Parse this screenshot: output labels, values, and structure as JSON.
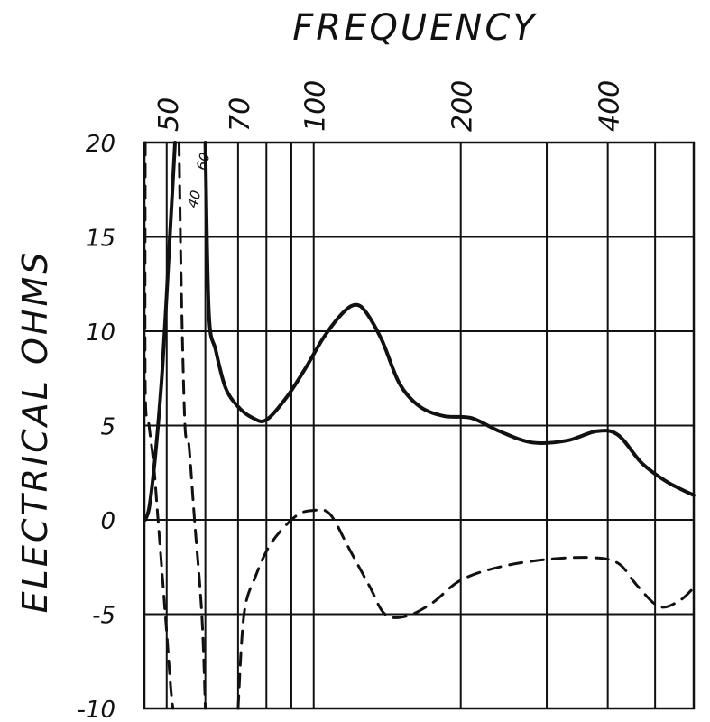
{
  "chart_data": {
    "type": "line",
    "title": "FREQUENCY",
    "ylabel": "ELECTRICAL OHMS",
    "xscale": "log",
    "xlim": [
      45,
      600
    ],
    "ylim": [
      -10,
      20
    ],
    "grid": true,
    "x_ticks": [
      {
        "value": 50,
        "label": "50"
      },
      {
        "value": 70,
        "label": "70"
      },
      {
        "value": 100,
        "label": "100"
      },
      {
        "value": 200,
        "label": "200"
      },
      {
        "value": 400,
        "label": "400"
      }
    ],
    "y_ticks": [
      {
        "value": 20,
        "label": "20"
      },
      {
        "value": 15,
        "label": "15"
      },
      {
        "value": 10,
        "label": "10"
      },
      {
        "value": 5,
        "label": "5"
      },
      {
        "value": 0,
        "label": "0"
      },
      {
        "value": -5,
        "label": "-5"
      },
      {
        "value": -10,
        "label": "-10"
      }
    ],
    "annotations": [
      {
        "text": "60",
        "x": 60,
        "y": 18.5
      },
      {
        "text": "40",
        "x": 57.5,
        "y": 16.5
      }
    ],
    "series": [
      {
        "style": "solid",
        "points": [
          [
            45.2,
            0
          ],
          [
            46,
            0.6
          ],
          [
            47,
            2.5
          ],
          [
            48,
            5
          ],
          [
            49,
            8
          ],
          [
            50,
            12
          ],
          [
            51,
            16
          ],
          [
            52,
            20
          ]
        ]
      },
      {
        "style": "solid",
        "points": [
          [
            60,
            20
          ],
          [
            61,
            11
          ],
          [
            63,
            9
          ],
          [
            66,
            7
          ],
          [
            70,
            6
          ],
          [
            75,
            5.4
          ],
          [
            80,
            5.3
          ],
          [
            88,
            6.5
          ],
          [
            96,
            8
          ],
          [
            105,
            9.7
          ],
          [
            115,
            11
          ],
          [
            122,
            11.4
          ],
          [
            128,
            11
          ],
          [
            138,
            9.5
          ],
          [
            150,
            7.2
          ],
          [
            165,
            6
          ],
          [
            185,
            5.5
          ],
          [
            210,
            5.4
          ],
          [
            240,
            4.7
          ],
          [
            280,
            4.1
          ],
          [
            330,
            4.2
          ],
          [
            380,
            4.7
          ],
          [
            420,
            4.5
          ],
          [
            470,
            3
          ],
          [
            530,
            2
          ],
          [
            600,
            1.3
          ]
        ]
      },
      {
        "style": "dashed",
        "points": [
          [
            45.2,
            20
          ],
          [
            45.2,
            7
          ],
          [
            46,
            5
          ],
          [
            47,
            3
          ],
          [
            48,
            0
          ],
          [
            49,
            -3
          ],
          [
            50,
            -6
          ],
          [
            51,
            -9
          ],
          [
            51.5,
            -10
          ]
        ]
      },
      {
        "style": "dashed",
        "points": [
          [
            53,
            20
          ],
          [
            53.6,
            12
          ],
          [
            54.5,
            5
          ],
          [
            55.5,
            4
          ],
          [
            57,
            0
          ],
          [
            59,
            -5
          ],
          [
            60,
            -10
          ]
        ]
      },
      {
        "style": "dashed",
        "points": [
          [
            70,
            -10
          ],
          [
            72,
            -5
          ],
          [
            76,
            -3
          ],
          [
            82,
            -1.2
          ],
          [
            92,
            0.2
          ],
          [
            100,
            0.5
          ],
          [
            108,
            0.3
          ],
          [
            118,
            -1.5
          ],
          [
            130,
            -3.5
          ],
          [
            140,
            -5
          ],
          [
            155,
            -5.1
          ],
          [
            175,
            -4.4
          ],
          [
            200,
            -3.2
          ],
          [
            240,
            -2.5
          ],
          [
            300,
            -2.1
          ],
          [
            370,
            -2
          ],
          [
            420,
            -2.3
          ],
          [
            460,
            -3.5
          ],
          [
            510,
            -4.6
          ],
          [
            560,
            -4.3
          ],
          [
            600,
            -3.6
          ]
        ]
      }
    ]
  }
}
